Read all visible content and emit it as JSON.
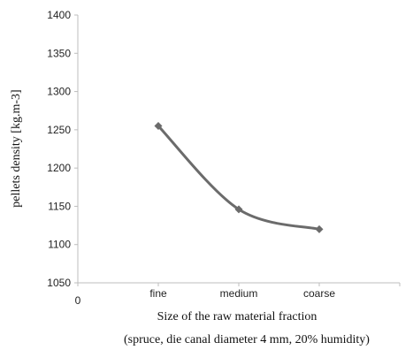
{
  "chart_data": {
    "type": "line",
    "categories": [
      "fine",
      "medium",
      "coarse"
    ],
    "series": [
      {
        "values": [
          1255,
          1146,
          1120
        ]
      }
    ],
    "ylim": [
      1050,
      1400
    ],
    "yticks": [
      "1050",
      "1100",
      "1150",
      "1200",
      "1250",
      "1300",
      "1350",
      "1400"
    ],
    "x_origin_label": "0",
    "xlabel": "Size of the raw material fraction",
    "subtitle": "(spruce, die canal diameter 4 mm, 20% humidity)",
    "ylabel": "pellets density [kg.m-3]",
    "grid": false,
    "legend": "none",
    "colors": {
      "series": "#6b6b6b",
      "axis": "#bdbdbd"
    }
  }
}
